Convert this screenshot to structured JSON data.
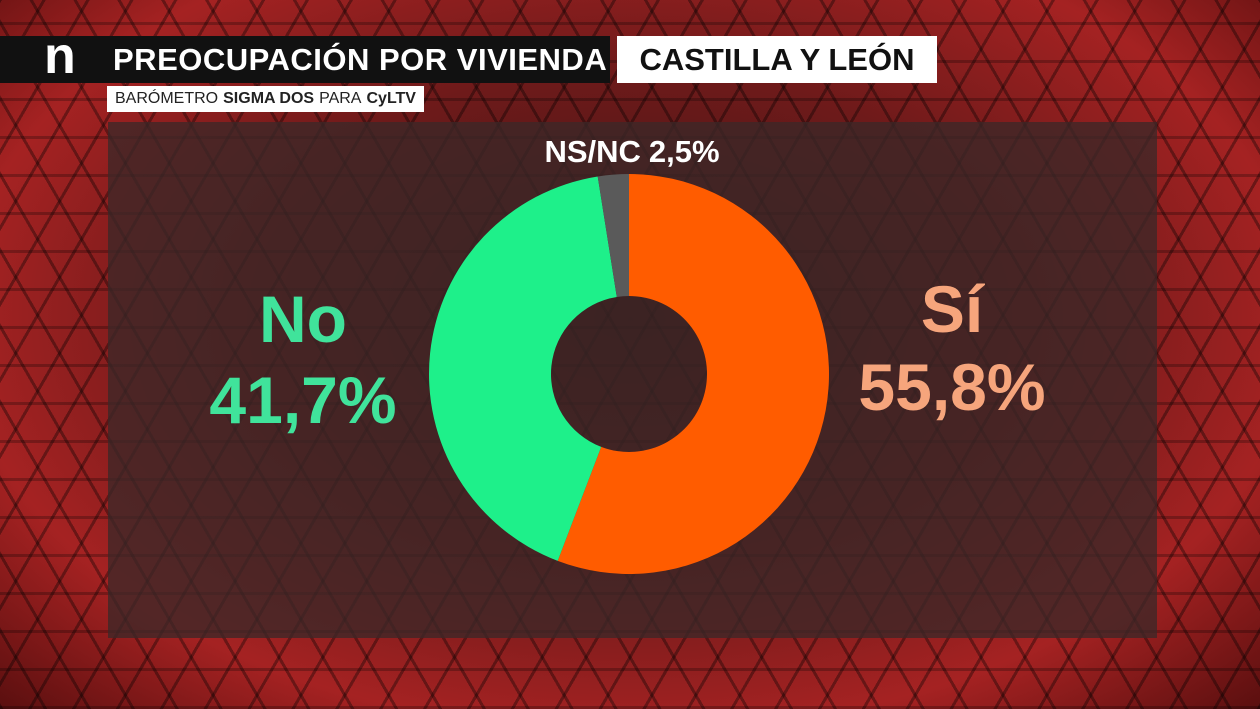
{
  "header": {
    "logo": "n",
    "title": "PREOCUPACIÓN POR VIVIENDA",
    "region": "CASTILLA Y LEÓN",
    "source": [
      "BARÓMETRO",
      "SIGMA DOS",
      "PARA",
      "CyLTV"
    ]
  },
  "chart_data": {
    "type": "pie",
    "donut": true,
    "categories": [
      "Sí",
      "No",
      "NS/NC"
    ],
    "values": [
      55.8,
      41.7,
      2.5
    ],
    "value_labels": [
      "55,8%",
      "41,7%",
      "2,5%"
    ],
    "colors": [
      "#ff5c00",
      "#1ef08a",
      "#5a5a5a"
    ],
    "label_colors": [
      "#f6a57c",
      "#40e39b",
      "#ffffff"
    ]
  }
}
